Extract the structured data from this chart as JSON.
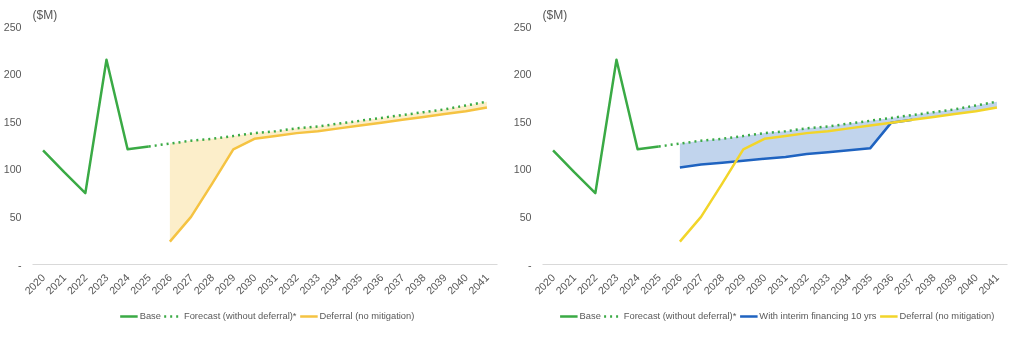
{
  "chart_data": [
    {
      "type": "line",
      "ylabel": "($M)",
      "categories": [
        "2020",
        "2021",
        "2022",
        "2023",
        "2024",
        "2025",
        "2026",
        "2027",
        "2028",
        "2029",
        "2030",
        "2031",
        "2032",
        "2033",
        "2034",
        "2035",
        "2036",
        "2037",
        "2038",
        "2039",
        "2040",
        "2041"
      ],
      "ylim": [
        0,
        250
      ],
      "yticks": [
        {
          "value": 0,
          "label": "-"
        },
        50,
        100,
        150,
        200,
        250
      ],
      "grid": false,
      "legend": "bottom",
      "marker": "none",
      "series": [
        {
          "name": "Base",
          "color": "#3aaa45",
          "line_style": "solid",
          "values": [
            120,
            97,
            75,
            215,
            121,
            124,
            null,
            null,
            null,
            null,
            null,
            null,
            null,
            null,
            null,
            null,
            null,
            null,
            null,
            null,
            null,
            null
          ]
        },
        {
          "name": "Forecast (without deferral)*",
          "color": "#3aaa45",
          "line_style": "dotted",
          "values": [
            null,
            null,
            null,
            null,
            null,
            124,
            127,
            130,
            132,
            135,
            138,
            140,
            143,
            145,
            148,
            151,
            154,
            157,
            160,
            163,
            167,
            171
          ]
        },
        {
          "name": "Deferral (no mitigation)",
          "color": "#f5c342",
          "line_style": "solid",
          "values": [
            null,
            null,
            null,
            null,
            null,
            null,
            24,
            50,
            85,
            121,
            132,
            135,
            138,
            140,
            143,
            146,
            149,
            152,
            155,
            158,
            161,
            165
          ],
          "lower": [
            null,
            null,
            null,
            null,
            null,
            null,
            24,
            50,
            85,
            121,
            132,
            135,
            138,
            140,
            143,
            146,
            149,
            152,
            155,
            158,
            161,
            165
          ],
          "upper": [
            null,
            null,
            null,
            null,
            null,
            null,
            127,
            130,
            132,
            135,
            138,
            140,
            143,
            145,
            148,
            151,
            154,
            157,
            160,
            163,
            167,
            171
          ]
        }
      ]
    },
    {
      "type": "line",
      "ylabel": "($M)",
      "categories": [
        "2020",
        "2021",
        "2022",
        "2023",
        "2024",
        "2025",
        "2026",
        "2027",
        "2028",
        "2029",
        "2030",
        "2031",
        "2032",
        "2033",
        "2034",
        "2035",
        "2036",
        "2037",
        "2038",
        "2039",
        "2040",
        "2041"
      ],
      "ylim": [
        0,
        250
      ],
      "yticks": [
        {
          "value": 0,
          "label": "-"
        },
        50,
        100,
        150,
        200,
        250
      ],
      "grid": false,
      "legend": "bottom",
      "marker": "none",
      "series": [
        {
          "name": "Base",
          "color": "#3aaa45",
          "line_style": "solid",
          "values": [
            120,
            97,
            75,
            215,
            121,
            124,
            null,
            null,
            null,
            null,
            null,
            null,
            null,
            null,
            null,
            null,
            null,
            null,
            null,
            null,
            null,
            null
          ]
        },
        {
          "name": "Forecast (without deferral)*",
          "color": "#3aaa45",
          "line_style": "dotted",
          "values": [
            null,
            null,
            null,
            null,
            null,
            124,
            127,
            130,
            132,
            135,
            138,
            140,
            143,
            145,
            148,
            151,
            154,
            157,
            160,
            163,
            167,
            171
          ]
        },
        {
          "name": "With interim financing 10 yrs",
          "color": "#1f63c0",
          "line_style": "solid",
          "values": [
            null,
            null,
            null,
            null,
            null,
            null,
            102,
            105,
            107,
            109,
            111,
            113,
            116,
            118,
            120,
            122,
            149,
            152,
            null,
            null,
            null,
            null
          ],
          "lower": [
            null,
            null,
            null,
            null,
            null,
            null,
            102,
            105,
            107,
            109,
            111,
            113,
            116,
            118,
            120,
            122,
            149,
            152,
            155,
            158,
            161,
            165
          ],
          "upper": [
            null,
            null,
            null,
            null,
            null,
            null,
            127,
            130,
            132,
            135,
            138,
            140,
            143,
            145,
            148,
            151,
            154,
            157,
            160,
            163,
            167,
            171
          ]
        },
        {
          "name": "Deferral (no mitigation)",
          "color": "#f2d52a",
          "line_style": "solid",
          "values": [
            null,
            null,
            null,
            null,
            null,
            null,
            24,
            50,
            85,
            121,
            132,
            135,
            138,
            140,
            143,
            146,
            149,
            152,
            155,
            158,
            161,
            165
          ]
        }
      ]
    }
  ]
}
